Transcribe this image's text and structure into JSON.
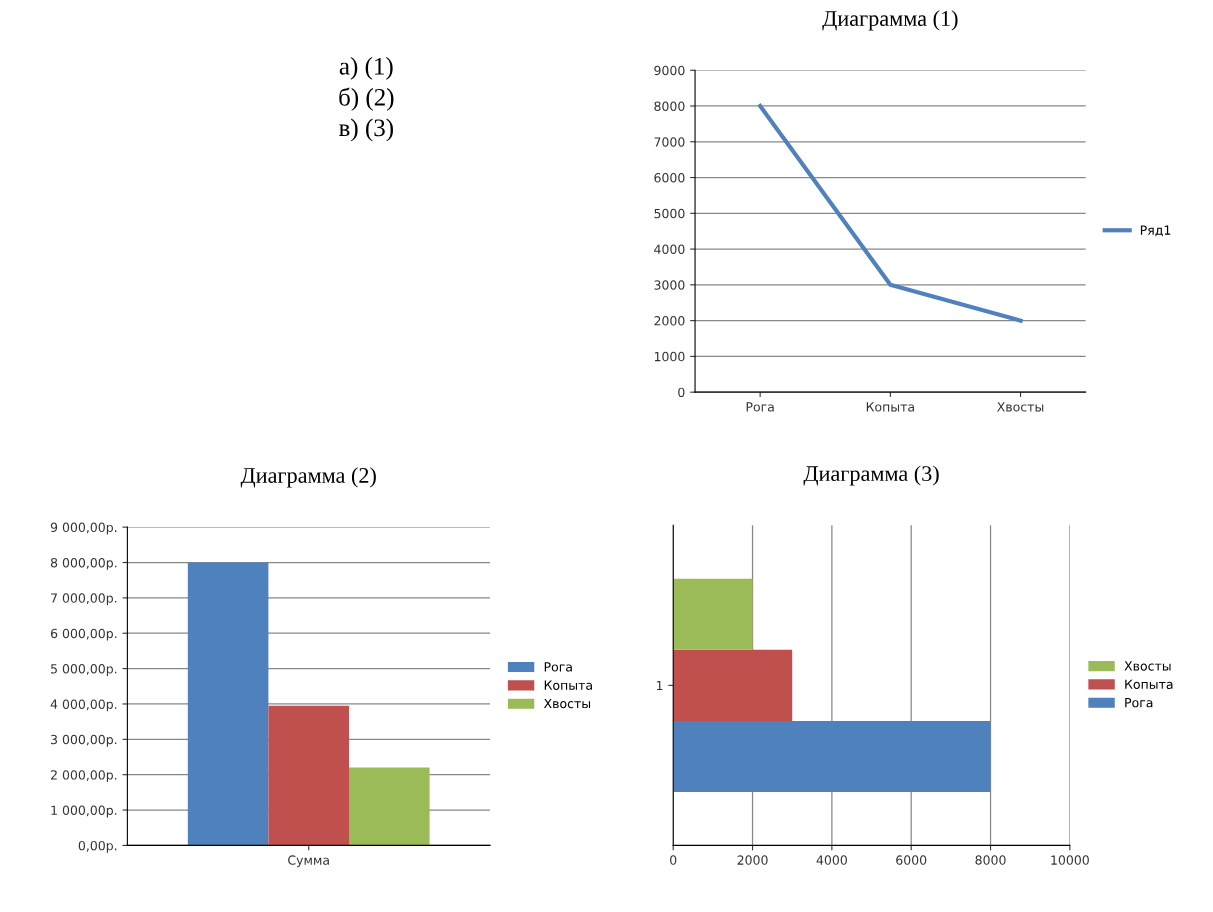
{
  "chart_data": [
    {
      "type": "other",
      "annotations": [
        "а) (1)",
        "б) (2)",
        "в) (3)"
      ]
    },
    {
      "type": "line",
      "title": "Диаграмма (1)",
      "categories": [
        "Рога",
        "Копыта",
        "Хвосты"
      ],
      "series": [
        {
          "name": "Ряд1",
          "color": "#4f81bd",
          "values": [
            8000,
            3000,
            2000
          ]
        }
      ],
      "ylim": [
        0,
        9000
      ],
      "yticks": [
        0,
        1000,
        2000,
        3000,
        4000,
        5000,
        6000,
        7000,
        8000,
        9000
      ],
      "grid": "y",
      "legend": "right",
      "marker": "none",
      "line_style": "solid"
    },
    {
      "type": "bar",
      "title": "Диаграмма (2)",
      "categories": [
        "Сумма"
      ],
      "series": [
        {
          "name": "Рога",
          "color": "#4f81bd",
          "values": [
            8000
          ]
        },
        {
          "name": "Копыта",
          "color": "#c0504d",
          "values": [
            3950
          ]
        },
        {
          "name": "Хвосты",
          "color": "#9bbb59",
          "values": [
            2200
          ]
        }
      ],
      "ylim": [
        0,
        9000
      ],
      "yticks": [
        {
          "value": 0,
          "label": "0,00р."
        },
        {
          "value": 1000,
          "label": "1 000,00р."
        },
        {
          "value": 2000,
          "label": "2 000,00р."
        },
        {
          "value": 3000,
          "label": "3 000,00р."
        },
        {
          "value": 4000,
          "label": "4 000,00р."
        },
        {
          "value": 5000,
          "label": "5 000,00р."
        },
        {
          "value": 6000,
          "label": "6 000,00р."
        },
        {
          "value": 7000,
          "label": "7 000,00р."
        },
        {
          "value": 8000,
          "label": "8 000,00р."
        },
        {
          "value": 9000,
          "label": "9 000,00р."
        }
      ],
      "grid": "y",
      "legend": "right"
    },
    {
      "type": "bar",
      "orientation": "horizontal",
      "title": "Диаграмма (3)",
      "categories": [
        "1"
      ],
      "series": [
        {
          "name": "Рога",
          "color": "#4f81bd",
          "values": [
            8000
          ]
        },
        {
          "name": "Копыта",
          "color": "#c0504d",
          "values": [
            3000
          ]
        },
        {
          "name": "Хвосты",
          "color": "#9bbb59",
          "values": [
            2000
          ]
        }
      ],
      "xlim": [
        0,
        10000
      ],
      "xticks": [
        0,
        2000,
        4000,
        6000,
        8000,
        10000
      ],
      "grid": "x",
      "legend": "right"
    }
  ]
}
